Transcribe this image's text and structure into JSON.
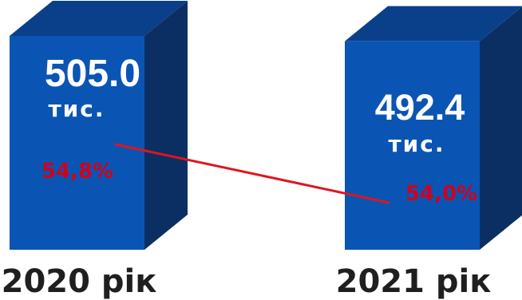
{
  "chart_data": {
    "type": "bar",
    "categories": [
      "2020 рік",
      "2021 рік"
    ],
    "values": [
      505.0,
      492.4
    ],
    "value_labels": [
      "505.0",
      "492.4"
    ],
    "unit_label": "тис.",
    "line_series": {
      "values": [
        54.8,
        54.0
      ],
      "labels": [
        "54,8%",
        "54,0%"
      ]
    },
    "colors": {
      "bar_front": "#0a55b4",
      "bar_side": "#0b2f63",
      "bar_top": "#0a3f8a",
      "line": "#e0141e",
      "percent_text": "#d0021b"
    }
  }
}
